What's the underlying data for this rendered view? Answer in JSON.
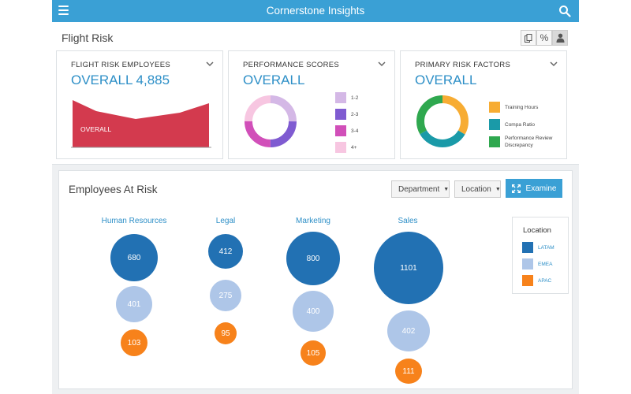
{
  "app": {
    "title": "Cornerstone Insights"
  },
  "header": {
    "section_title": "Flight Risk",
    "tools": [
      {
        "name": "copy",
        "glyph": "❐"
      },
      {
        "name": "percent",
        "glyph": "%"
      },
      {
        "name": "person",
        "glyph": "👤"
      }
    ]
  },
  "panels": [
    {
      "title": "FLIGHT RISK EMPLOYEES",
      "overall": "OVERALL 4,885",
      "area_label": "OVERALL"
    },
    {
      "title": "PERFORMANCE SCORES",
      "overall": "OVERALL",
      "legend": [
        {
          "label": "1-2",
          "color": "#d4b8e6"
        },
        {
          "label": "2-3",
          "color": "#7f5bd1"
        },
        {
          "label": "3-4",
          "color": "#d14fb9"
        },
        {
          "label": "4+",
          "color": "#f7c6e1"
        }
      ]
    },
    {
      "title": "PRIMARY RISK FACTORS",
      "overall": "OVERALL",
      "legend": [
        {
          "label": "Training Hours",
          "color": "#f7ac33"
        },
        {
          "label": "Compa Ratio",
          "color": "#1a9aa8"
        },
        {
          "label": "Performance Review Discrepancy",
          "color": "#2fa84f"
        }
      ]
    }
  ],
  "bottom": {
    "title": "Employees At Risk",
    "department_label": "Department",
    "location_label": "Location",
    "examine_label": "Examine",
    "legend_title": "Location",
    "locations": [
      {
        "label": "LATAM",
        "color": "#2271b3"
      },
      {
        "label": "EMEA",
        "color": "#aec6e8"
      },
      {
        "label": "APAC",
        "color": "#f7821b"
      }
    ],
    "columns": [
      {
        "name": "Human Resources",
        "values": [
          "680",
          "401",
          "103"
        ]
      },
      {
        "name": "Legal",
        "values": [
          "412",
          "275",
          "95"
        ]
      },
      {
        "name": "Marketing",
        "values": [
          "800",
          "400",
          "105"
        ]
      },
      {
        "name": "Sales",
        "values": [
          "1101",
          "402",
          "111"
        ]
      }
    ]
  },
  "colors": {
    "accent": "#3aa0d5",
    "area": "#d33a4e",
    "donut1": [
      "#d4b8e6",
      "#7f5bd1",
      "#d14fb9",
      "#f7c6e1"
    ],
    "donut2": [
      "#f7ac33",
      "#1a9aa8",
      "#2fa84f"
    ]
  }
}
